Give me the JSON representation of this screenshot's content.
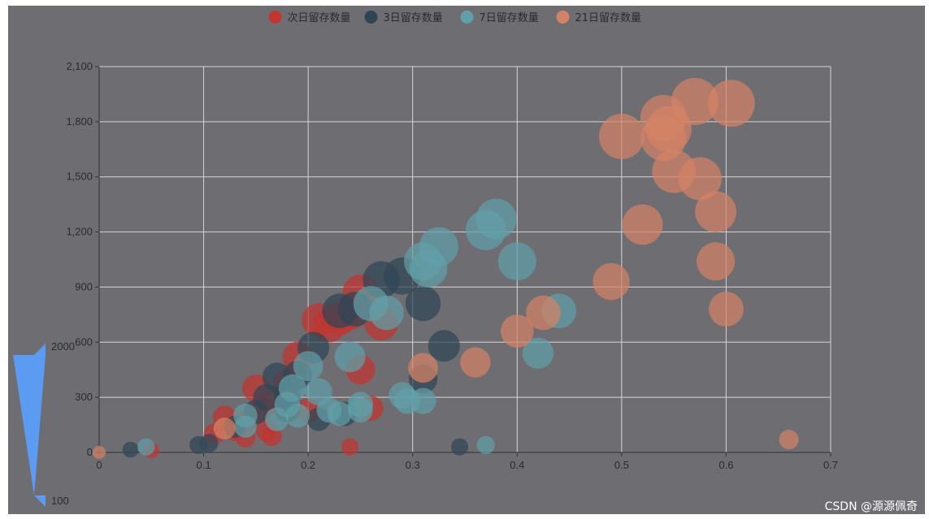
{
  "chart_data": {
    "type": "scatter",
    "title": "",
    "xlabel": "",
    "ylabel": "",
    "xlim": [
      0,
      0.7
    ],
    "ylim": [
      0,
      2100
    ],
    "x_ticks": [
      "0",
      "0.1",
      "0.2",
      "0.3",
      "0.4",
      "0.5",
      "0.6",
      "0.7"
    ],
    "y_ticks": [
      "0",
      "300",
      "600",
      "900",
      "1,200",
      "1,500",
      "1,800",
      "2,100"
    ],
    "grid": true,
    "legend_position": "top-center",
    "size_scale": {
      "min_label": "100",
      "max_label": "2000",
      "min": 100,
      "max": 2000
    },
    "series": [
      {
        "name": "次日留存数量",
        "color": "#c23531",
        "points": [
          [
            0.05,
            10
          ],
          [
            0.11,
            100
          ],
          [
            0.12,
            190
          ],
          [
            0.14,
            80
          ],
          [
            0.15,
            350
          ],
          [
            0.16,
            120
          ],
          [
            0.17,
            280
          ],
          [
            0.18,
            380
          ],
          [
            0.19,
            520
          ],
          [
            0.2,
            230
          ],
          [
            0.21,
            720
          ],
          [
            0.22,
            690
          ],
          [
            0.23,
            730
          ],
          [
            0.24,
            760
          ],
          [
            0.25,
            870
          ],
          [
            0.26,
            240
          ],
          [
            0.27,
            700
          ],
          [
            0.25,
            450
          ],
          [
            0.24,
            30
          ],
          [
            0.165,
            90
          ],
          [
            0.14,
            170
          ],
          [
            0.13,
            120
          ],
          [
            0.155,
            240
          ]
        ]
      },
      {
        "name": "3日留存数量",
        "color": "#2f4554",
        "points": [
          [
            0.03,
            15
          ],
          [
            0.095,
            40
          ],
          [
            0.105,
            50
          ],
          [
            0.13,
            140
          ],
          [
            0.15,
            220
          ],
          [
            0.16,
            300
          ],
          [
            0.17,
            410
          ],
          [
            0.18,
            230
          ],
          [
            0.19,
            420
          ],
          [
            0.205,
            570
          ],
          [
            0.21,
            180
          ],
          [
            0.23,
            770
          ],
          [
            0.245,
            780
          ],
          [
            0.27,
            940
          ],
          [
            0.29,
            960
          ],
          [
            0.31,
            810
          ],
          [
            0.31,
            400
          ],
          [
            0.33,
            580
          ],
          [
            0.345,
            30
          ],
          [
            0.235,
            210
          ],
          [
            0.18,
            310
          ]
        ]
      },
      {
        "name": "7日留存数量",
        "color": "#61a0a8",
        "points": [
          [
            0.045,
            30
          ],
          [
            0.14,
            140
          ],
          [
            0.14,
            200
          ],
          [
            0.17,
            180
          ],
          [
            0.18,
            260
          ],
          [
            0.185,
            350
          ],
          [
            0.19,
            200
          ],
          [
            0.2,
            470
          ],
          [
            0.21,
            330
          ],
          [
            0.22,
            230
          ],
          [
            0.23,
            210
          ],
          [
            0.24,
            520
          ],
          [
            0.25,
            230
          ],
          [
            0.26,
            810
          ],
          [
            0.275,
            760
          ],
          [
            0.29,
            310
          ],
          [
            0.295,
            280
          ],
          [
            0.31,
            280
          ],
          [
            0.31,
            1040
          ],
          [
            0.315,
            1000
          ],
          [
            0.325,
            1120
          ],
          [
            0.37,
            1210
          ],
          [
            0.38,
            1270
          ],
          [
            0.4,
            1040
          ],
          [
            0.42,
            540
          ],
          [
            0.44,
            770
          ],
          [
            0.37,
            40
          ],
          [
            0.25,
            260
          ]
        ]
      },
      {
        "name": "21日留存数量",
        "color": "#d48265",
        "points": [
          [
            0,
            0
          ],
          [
            0.12,
            130
          ],
          [
            0.31,
            460
          ],
          [
            0.36,
            490
          ],
          [
            0.4,
            660
          ],
          [
            0.425,
            760
          ],
          [
            0.49,
            930
          ],
          [
            0.5,
            1720
          ],
          [
            0.52,
            1240
          ],
          [
            0.54,
            1710
          ],
          [
            0.54,
            1820
          ],
          [
            0.545,
            1760
          ],
          [
            0.55,
            1530
          ],
          [
            0.57,
            1910
          ],
          [
            0.575,
            1490
          ],
          [
            0.59,
            1310
          ],
          [
            0.59,
            1040
          ],
          [
            0.6,
            780
          ],
          [
            0.605,
            1900
          ],
          [
            0.66,
            70
          ]
        ]
      }
    ]
  },
  "watermark": "CSDN @源源佩奇"
}
